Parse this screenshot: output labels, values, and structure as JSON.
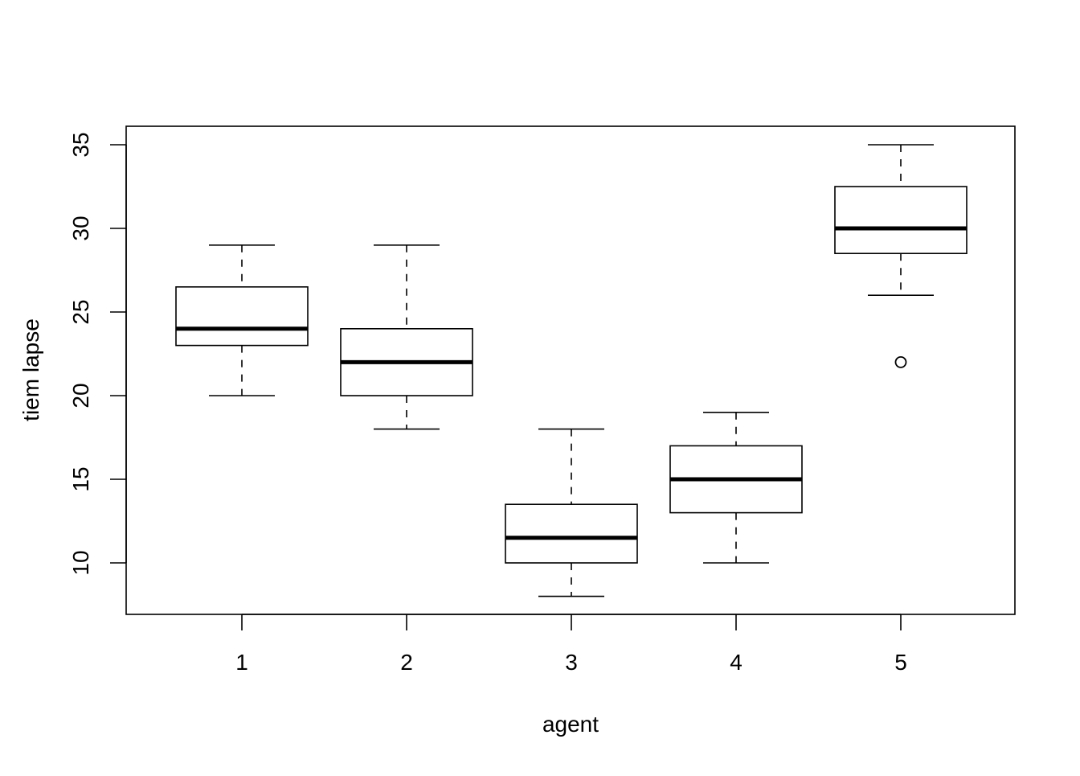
{
  "chart_data": {
    "type": "boxplot",
    "title": "",
    "xlabel": "agent",
    "ylabel": "tiem lapse",
    "categories": [
      "1",
      "2",
      "3",
      "4",
      "5"
    ],
    "y_ticks": [
      10,
      15,
      20,
      25,
      30,
      35
    ],
    "ylim": [
      7,
      36.1
    ],
    "grid": false,
    "boxes": [
      {
        "category": "1",
        "whisker_low": 20,
        "q1": 23,
        "median": 24,
        "q3": 26.5,
        "whisker_high": 29,
        "outliers": []
      },
      {
        "category": "2",
        "whisker_low": 18,
        "q1": 20,
        "median": 22,
        "q3": 24,
        "whisker_high": 29,
        "outliers": []
      },
      {
        "category": "3",
        "whisker_low": 8,
        "q1": 10,
        "median": 11.5,
        "q3": 13.5,
        "whisker_high": 18,
        "outliers": []
      },
      {
        "category": "4",
        "whisker_low": 10,
        "q1": 13,
        "median": 15,
        "q3": 17,
        "whisker_high": 19,
        "outliers": []
      },
      {
        "category": "5",
        "whisker_low": 26,
        "q1": 28.5,
        "median": 30,
        "q3": 32.5,
        "whisker_high": 35,
        "outliers": [
          22
        ]
      }
    ]
  }
}
